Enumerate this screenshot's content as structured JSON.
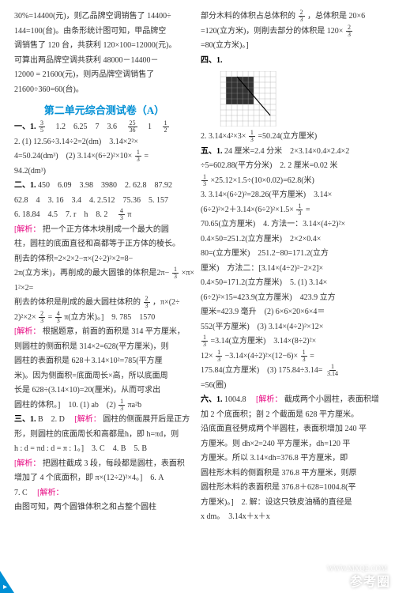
{
  "left": {
    "intro": [
      "30%=14400(元)，则乙品牌空调销售了 14400÷",
      "144=100(台)。由条形统计图可知，甲品牌空",
      "调销售了 120 台，共获利 120×100=12000(元)。",
      "可算出两品牌空调共获利 48000－14400－",
      "12000 = 21600(元)，则丙品牌空调销售了",
      "21600÷360=60(台)。"
    ],
    "title": "第二单元综合测试卷（A）",
    "s1": {
      "label": "一、1.",
      "row1a": "　1.2　6.25　7　3.6　",
      "frac1": {
        "n": "3",
        "d": "5"
      },
      "frac2": {
        "n": "25",
        "d": "36"
      },
      "row1b": "　1　",
      "frac3": {
        "n": "1",
        "d": "2"
      },
      "q2a": "2. (1) 12.56÷3.14÷2=2(dm)　3.14×2²×",
      "frac4": {
        "n": "1",
        "d": "3"
      },
      "q2b": "4=50.24(dm³)　(2) 3.14×(6÷2)²×10×",
      "q2c": "=",
      "q2d": "94.2(dm³)"
    },
    "s2": {
      "label": "二、1.",
      "r1": " 450　6.09　3.98　3980　2. 62.8　87.92",
      "r2": "62.8　4　3. 16　3.4　4. 2.512　75.36　5. 157",
      "r3": "6. 18.84　4.5　7. r　h　8. 2　",
      "frac1": {
        "n": "4",
        "d": "3"
      },
      "r3b": "π",
      "ex1lbl": "[解析：",
      "ex1": "把一个正方体木块削成一个最大的圆",
      "ex1b": "柱，圆柱的底面直径和高都等于正方体的棱长。",
      "ex1c": "削去的体积=2×2×2−π×(2÷2)²×2=8−",
      "ex1d": "2π(立方米)，再削成的最大圆锥的体积是2π−",
      "frac3": {
        "n": "1",
        "d": "3"
      },
      "ex1e": "×π×1²×2=",
      "frac4": {
        "n": "2",
        "d": "3"
      },
      "ex1ee": "削去的体积是削成的最大圆柱体积的",
      "ex1eee": "，π×(2÷",
      "ex1f": "2)²×2×",
      "frac5": {
        "n": "2",
        "d": "3"
      },
      "ex1g": "=",
      "frac6": {
        "n": "4",
        "d": "3"
      },
      "ex1h": "π(立方米)。]　9. 785　1570",
      "ex2lbl": "[解析：",
      "ex2": "根据题意，前面的面积是 314 平方厘米，",
      "ex2b": "则圆柱的侧面积是 314×2=628(平方厘米)，则",
      "ex2c": "圆柱的表面积是 628＋3.14×10²=785(平方厘",
      "ex2d": "米)。因为侧面积=底面周长×高，所以底面周",
      "ex2e": "长是 628÷(3.14×10)=20(厘米)，从而可求出",
      "ex2f": "圆柱的体积。]　10. (1) ab　(2) ",
      "frac7": {
        "n": "1",
        "d": "3"
      },
      "ex2g": "πa²b"
    },
    "s3": {
      "label": "三、1.",
      "r1": " B　2. D　",
      "ex1lbl": "[解析：",
      "ex1": "圆柱的侧面展开后是正方",
      "ex1b": "形，则圆柱的底面周长和高都是h，即 h=πd，则",
      "ex1c": "h : d = πd : d = π : 1。]　3. C　4. B　5. B",
      "ex2lbl": "[解析：",
      "ex2": "把圆柱截成 3 段，每段都是圆柱，表面积",
      "ex2b": "增加了 4 个底面积，即 π×(12÷2)²×4。]　6. A",
      "ex2c": "7. C　",
      "ex3lbl": "[解析：",
      "ex3": "由图可知，两个圆锥体积之和占整个圆柱"
    }
  },
  "right": {
    "top": [
      "部分木料的体积占总体积的",
      {
        "n": "2",
        "d": "3"
      },
      "，总体积是 20×6",
      "=120(立方米)，则削去部分的体积是 120×",
      {
        "n": "2",
        "d": "3"
      },
      "=80(立方米)。]"
    ],
    "s4": {
      "label": "四、1."
    },
    "grid": {
      "size": 10,
      "fill": "#333333",
      "cells": [
        [
          1,
          1
        ],
        [
          2,
          1
        ],
        [
          3,
          1
        ],
        [
          4,
          1
        ],
        [
          5,
          1
        ],
        [
          1,
          2
        ],
        [
          2,
          2
        ],
        [
          3,
          2
        ],
        [
          4,
          2
        ],
        [
          5,
          2
        ],
        [
          1,
          3
        ],
        [
          2,
          3
        ],
        [
          3,
          3
        ],
        [
          4,
          3
        ],
        [
          5,
          3
        ],
        [
          1,
          4
        ],
        [
          2,
          4
        ],
        [
          3,
          4
        ],
        [
          4,
          4
        ],
        [
          5,
          4
        ],
        [
          1,
          5
        ],
        [
          2,
          5
        ],
        [
          3,
          5
        ],
        [
          4,
          5
        ],
        [
          5,
          5
        ]
      ],
      "line_color": "#000000"
    },
    "s4b": [
      "2. 3.14×4²×3×",
      {
        "n": "1",
        "d": "3"
      },
      "=50.24(立方厘米)"
    ],
    "s5": {
      "label": "五、1.",
      "lines": [
        " 24 厘米=2.4 分米　2×3.14×0.4×2.4×2",
        "÷5=602.88(平方分米)　2. 2 厘米=0.02 米",
        "",
        "×25.12×1.5÷(10×0.02)=62.8(米)",
        "3. 3.14×(6÷2)²=28.26(平方厘米)　3.14×",
        "(6÷2)²×2＋3.14×(6÷2)²×1.5×",
        "=",
        "70.65(立方厘米)　4. 方法一：3.14×(4÷2)²×",
        "0.4×50=251.2(立方厘米)　2×2×0.4×",
        "80=(立方厘米)　251.2−80=171.2(立方",
        "厘米)　方法二：[3.14×(4÷2)²−2×2]×",
        "0.4×50=171.2(立方厘米)　5. (1) 3.14×",
        "(6÷2)²×15=423.9(立方厘米)　423.9 立方",
        "厘米=423.9 毫升　(2) 6×6×20×6×4＝",
        "552(平方厘米)　(3) 3.14×(4÷2)²×12×",
        "",
        "=3.14(立方厘米)　3.14×(8÷2)²×",
        "12×",
        "−3.14×(4÷2)²×(12−6)×",
        "=",
        "175.84(立方厘米)　(3) 175.84÷3.14=",
        "=56(圈)"
      ]
    },
    "s6": {
      "label": "六、1.",
      "r1": "1004.8　",
      "exlbl": "[解析：",
      "lines": [
        "截成两个小圆柱，表面积增",
        "加 2 个底面积；剖 2 个截面是 628 平方厘米。",
        "沿底面直径劈成两个半圆柱，表面积增加 240 平",
        "方厘米。则 dh×2=240 平方厘米，dh=120 平",
        "方厘米。所以 3.14×dh=376.8 平方厘米，即",
        "圆柱形木料的侧面积是 376.8 平方厘米，则原",
        "圆柱形木料的表面积是 376.8＋628=1004.8(平",
        "方厘米)。]　2. 解：设这只铁皮油桶的直径是",
        "x dm。　3.14x＋x＋x"
      ]
    }
  },
  "watermark": {
    "brand": "参考圈",
    "site": "WWW.MXQE.COM"
  }
}
